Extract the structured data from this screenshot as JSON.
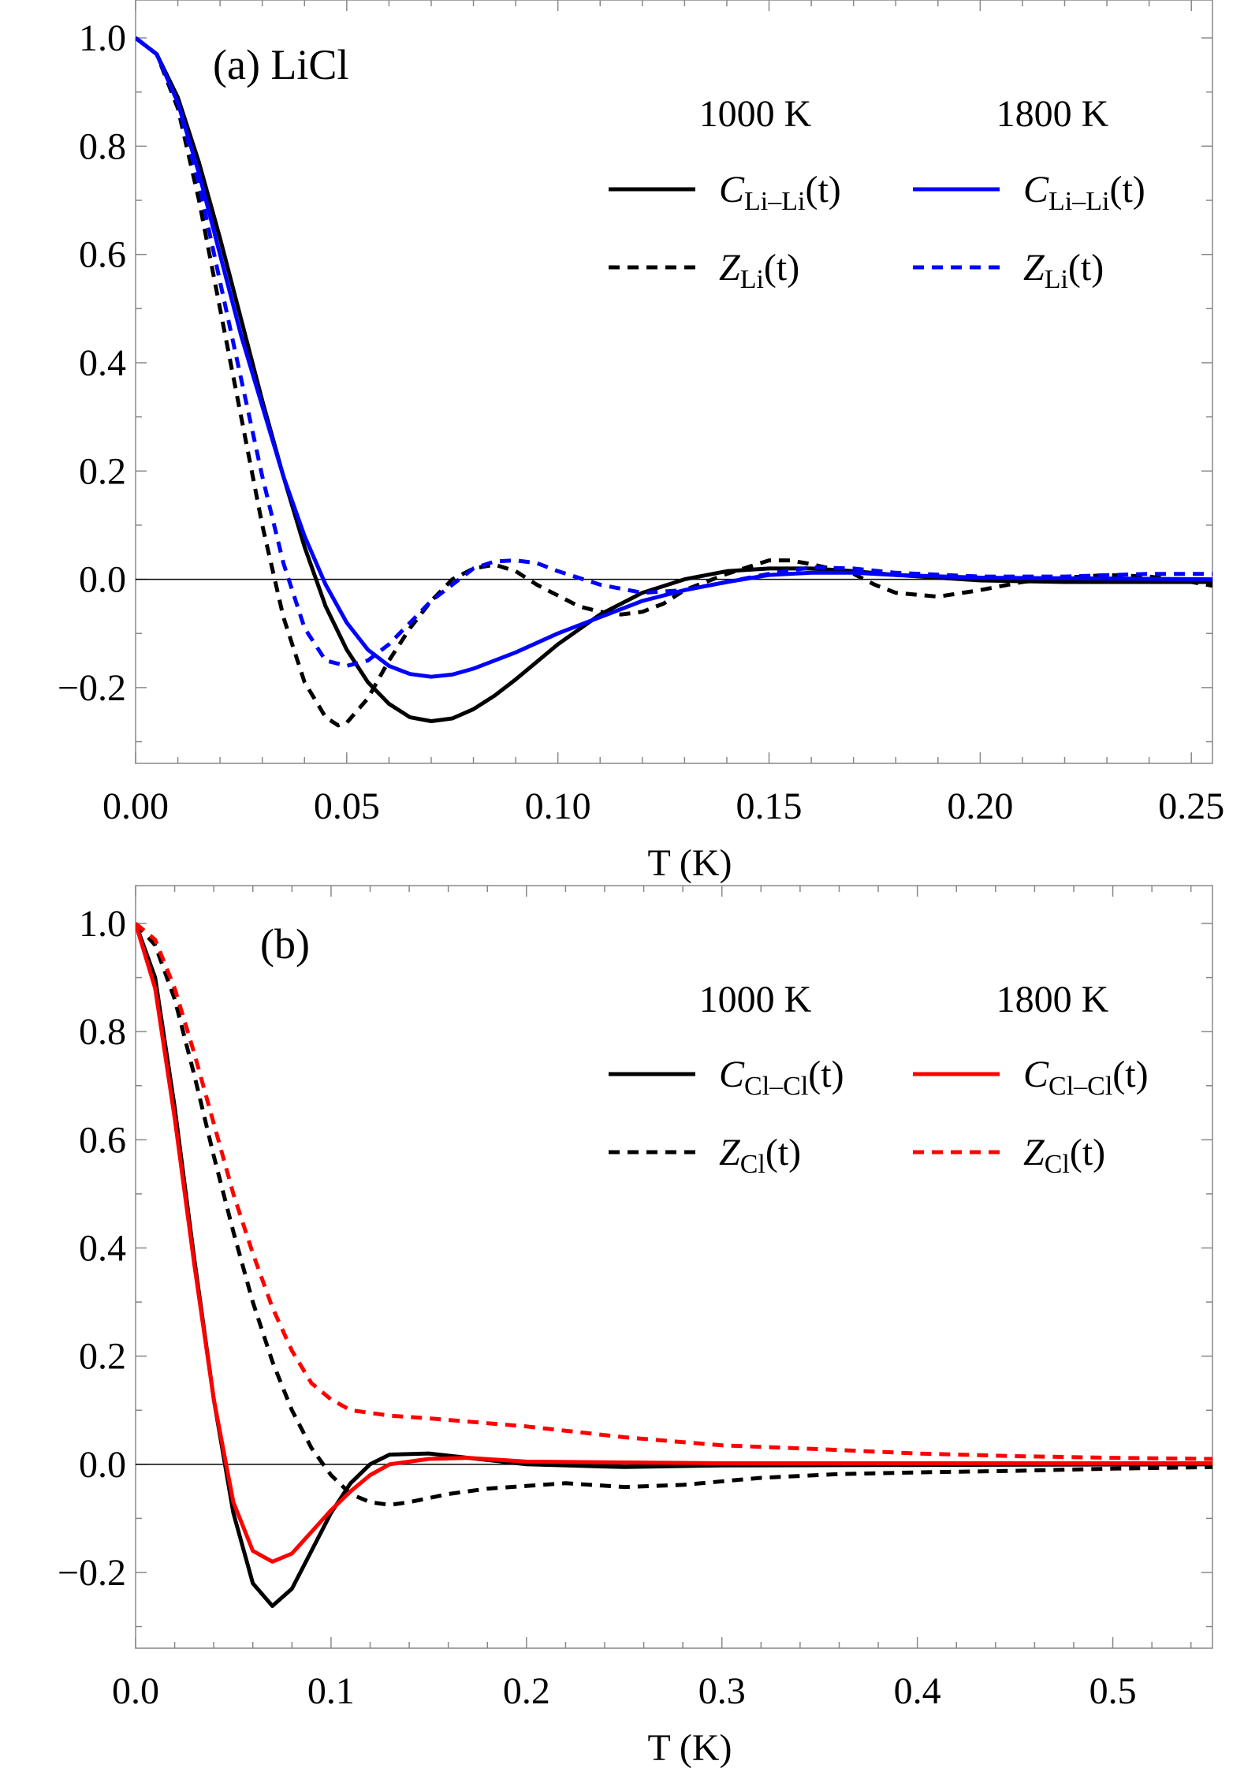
{
  "colors": {
    "black": "#000000",
    "blue": "#0000ff",
    "red": "#ff0000"
  },
  "chart_data": [
    {
      "type": "line",
      "panel_label": "(a) LiCl",
      "xlabel": "T (K)",
      "ylabel": "",
      "xlim": [
        0,
        0.255
      ],
      "ylim": [
        -0.34,
        1.07
      ],
      "xticks": [
        "0.00",
        "0.05",
        "0.10",
        "0.15",
        "0.20",
        "0.25"
      ],
      "xtick_values": [
        0,
        0.05,
        0.1,
        0.15,
        0.2,
        0.25
      ],
      "yticks": [
        "−0.2",
        "0.0",
        "0.2",
        "0.4",
        "0.6",
        "0.8",
        "1.0"
      ],
      "ytick_values": [
        -0.2,
        0,
        0.2,
        0.4,
        0.6,
        0.8,
        1.0
      ],
      "legend_headers": [
        "1000 K",
        "1800 K"
      ],
      "legend_placement": "top-right",
      "series": [
        {
          "name": "C Li–Li(t) 1000 K",
          "label": {
            "main": "C",
            "sub": "Li–Li",
            "tail": "(t)"
          },
          "color": "#000000",
          "dash": false,
          "points": [
            [
              0,
              1
            ],
            [
              0.005,
              0.97
            ],
            [
              0.01,
              0.89
            ],
            [
              0.015,
              0.77
            ],
            [
              0.02,
              0.63
            ],
            [
              0.025,
              0.48
            ],
            [
              0.03,
              0.33
            ],
            [
              0.035,
              0.19
            ],
            [
              0.04,
              0.06
            ],
            [
              0.045,
              -0.05
            ],
            [
              0.05,
              -0.13
            ],
            [
              0.055,
              -0.19
            ],
            [
              0.06,
              -0.23
            ],
            [
              0.065,
              -0.255
            ],
            [
              0.07,
              -0.262
            ],
            [
              0.075,
              -0.257
            ],
            [
              0.08,
              -0.24
            ],
            [
              0.085,
              -0.215
            ],
            [
              0.09,
              -0.185
            ],
            [
              0.1,
              -0.12
            ],
            [
              0.11,
              -0.065
            ],
            [
              0.12,
              -0.025
            ],
            [
              0.13,
              0
            ],
            [
              0.14,
              0.015
            ],
            [
              0.15,
              0.02
            ],
            [
              0.16,
              0.02
            ],
            [
              0.17,
              0.015
            ],
            [
              0.18,
              0.008
            ],
            [
              0.2,
              -0.002
            ],
            [
              0.22,
              -0.005
            ],
            [
              0.255,
              -0.005
            ]
          ]
        },
        {
          "name": "Z Li(t) 1000 K",
          "label": {
            "main": "Z",
            "sub": "Li",
            "tail": "(t)"
          },
          "color": "#000000",
          "dash": true,
          "points": [
            [
              0,
              1
            ],
            [
              0.005,
              0.97
            ],
            [
              0.01,
              0.87
            ],
            [
              0.015,
              0.7
            ],
            [
              0.02,
              0.5
            ],
            [
              0.025,
              0.3
            ],
            [
              0.03,
              0.1
            ],
            [
              0.035,
              -0.07
            ],
            [
              0.04,
              -0.19
            ],
            [
              0.045,
              -0.255
            ],
            [
              0.048,
              -0.27
            ],
            [
              0.05,
              -0.265
            ],
            [
              0.055,
              -0.22
            ],
            [
              0.06,
              -0.15
            ],
            [
              0.065,
              -0.09
            ],
            [
              0.07,
              -0.04
            ],
            [
              0.075,
              0
            ],
            [
              0.08,
              0.02
            ],
            [
              0.085,
              0.027
            ],
            [
              0.09,
              0.015
            ],
            [
              0.095,
              -0.01
            ],
            [
              0.1,
              -0.03
            ],
            [
              0.105,
              -0.05
            ],
            [
              0.11,
              -0.06
            ],
            [
              0.115,
              -0.065
            ],
            [
              0.12,
              -0.06
            ],
            [
              0.125,
              -0.045
            ],
            [
              0.13,
              -0.02
            ],
            [
              0.14,
              0.01
            ],
            [
              0.15,
              0.035
            ],
            [
              0.155,
              0.035
            ],
            [
              0.16,
              0.028
            ],
            [
              0.17,
              0.01
            ],
            [
              0.175,
              -0.01
            ],
            [
              0.18,
              -0.025
            ],
            [
              0.19,
              -0.032
            ],
            [
              0.2,
              -0.02
            ],
            [
              0.21,
              -0.005
            ],
            [
              0.22,
              0.003
            ],
            [
              0.23,
              0.008
            ],
            [
              0.24,
              0.005
            ],
            [
              0.25,
              -0.005
            ],
            [
              0.255,
              -0.012
            ]
          ]
        },
        {
          "name": "C Li–Li(t) 1800 K",
          "label": {
            "main": "C",
            "sub": "Li–Li",
            "tail": "(t)"
          },
          "color": "#0000ff",
          "dash": false,
          "points": [
            [
              0,
              1
            ],
            [
              0.005,
              0.97
            ],
            [
              0.01,
              0.88
            ],
            [
              0.015,
              0.75
            ],
            [
              0.02,
              0.6
            ],
            [
              0.025,
              0.45
            ],
            [
              0.03,
              0.32
            ],
            [
              0.035,
              0.19
            ],
            [
              0.04,
              0.08
            ],
            [
              0.045,
              -0.01
            ],
            [
              0.05,
              -0.08
            ],
            [
              0.055,
              -0.13
            ],
            [
              0.06,
              -0.16
            ],
            [
              0.065,
              -0.175
            ],
            [
              0.07,
              -0.18
            ],
            [
              0.075,
              -0.176
            ],
            [
              0.08,
              -0.165
            ],
            [
              0.09,
              -0.135
            ],
            [
              0.1,
              -0.1
            ],
            [
              0.11,
              -0.07
            ],
            [
              0.12,
              -0.04
            ],
            [
              0.13,
              -0.02
            ],
            [
              0.14,
              -0.005
            ],
            [
              0.15,
              0.008
            ],
            [
              0.16,
              0.012
            ],
            [
              0.17,
              0.012
            ],
            [
              0.18,
              0.008
            ],
            [
              0.2,
              0.003
            ],
            [
              0.255,
              0
            ]
          ]
        },
        {
          "name": "Z Li(t) 1800 K",
          "label": {
            "main": "Z",
            "sub": "Li",
            "tail": "(t)"
          },
          "color": "#0000ff",
          "dash": true,
          "points": [
            [
              0,
              1
            ],
            [
              0.005,
              0.97
            ],
            [
              0.01,
              0.88
            ],
            [
              0.015,
              0.73
            ],
            [
              0.02,
              0.55
            ],
            [
              0.025,
              0.37
            ],
            [
              0.03,
              0.19
            ],
            [
              0.035,
              0.03
            ],
            [
              0.04,
              -0.09
            ],
            [
              0.045,
              -0.15
            ],
            [
              0.05,
              -0.16
            ],
            [
              0.055,
              -0.15
            ],
            [
              0.06,
              -0.12
            ],
            [
              0.065,
              -0.08
            ],
            [
              0.07,
              -0.04
            ],
            [
              0.075,
              -0.01
            ],
            [
              0.08,
              0.02
            ],
            [
              0.085,
              0.033
            ],
            [
              0.09,
              0.035
            ],
            [
              0.095,
              0.03
            ],
            [
              0.1,
              0.015
            ],
            [
              0.11,
              -0.01
            ],
            [
              0.12,
              -0.025
            ],
            [
              0.13,
              -0.02
            ],
            [
              0.14,
              -0.005
            ],
            [
              0.15,
              0.01
            ],
            [
              0.16,
              0.022
            ],
            [
              0.17,
              0.02
            ],
            [
              0.18,
              0.012
            ],
            [
              0.2,
              0.005
            ],
            [
              0.22,
              0.005
            ],
            [
              0.24,
              0.01
            ],
            [
              0.255,
              0.01
            ]
          ]
        }
      ]
    },
    {
      "type": "line",
      "panel_label": "(b)",
      "xlabel": "T (K)",
      "ylabel": "",
      "xlim": [
        0,
        0.551
      ],
      "ylim": [
        -0.34,
        1.07
      ],
      "xticks": [
        "0.0",
        "0.1",
        "0.2",
        "0.3",
        "0.4",
        "0.5"
      ],
      "xtick_values": [
        0,
        0.1,
        0.2,
        0.3,
        0.4,
        0.5
      ],
      "yticks": [
        "−0.2",
        "0.0",
        "0.2",
        "0.4",
        "0.6",
        "0.8",
        "1.0"
      ],
      "ytick_values": [
        -0.2,
        0,
        0.2,
        0.4,
        0.6,
        0.8,
        1.0
      ],
      "legend_headers": [
        "1000 K",
        "1800 K"
      ],
      "legend_placement": "top-right",
      "series": [
        {
          "name": "C Cl–Cl(t) 1000 K",
          "label": {
            "main": "C",
            "sub": "Cl–Cl",
            "tail": "(t)"
          },
          "color": "#000000",
          "dash": false,
          "points": [
            [
              0,
              1
            ],
            [
              0.01,
              0.9
            ],
            [
              0.02,
              0.66
            ],
            [
              0.03,
              0.38
            ],
            [
              0.04,
              0.12
            ],
            [
              0.05,
              -0.09
            ],
            [
              0.06,
              -0.22
            ],
            [
              0.07,
              -0.262
            ],
            [
              0.08,
              -0.23
            ],
            [
              0.09,
              -0.16
            ],
            [
              0.1,
              -0.09
            ],
            [
              0.11,
              -0.035
            ],
            [
              0.12,
              0
            ],
            [
              0.13,
              0.018
            ],
            [
              0.15,
              0.02
            ],
            [
              0.17,
              0.012
            ],
            [
              0.2,
              0
            ],
            [
              0.25,
              -0.005
            ],
            [
              0.3,
              -0.002
            ],
            [
              0.551,
              0
            ]
          ]
        },
        {
          "name": "Z Cl(t) 1000 K",
          "label": {
            "main": "Z",
            "sub": "Cl",
            "tail": "(t)"
          },
          "color": "#000000",
          "dash": true,
          "points": [
            [
              0,
              1
            ],
            [
              0.01,
              0.96
            ],
            [
              0.02,
              0.86
            ],
            [
              0.03,
              0.72
            ],
            [
              0.04,
              0.57
            ],
            [
              0.05,
              0.43
            ],
            [
              0.06,
              0.3
            ],
            [
              0.07,
              0.19
            ],
            [
              0.08,
              0.1
            ],
            [
              0.09,
              0.03
            ],
            [
              0.1,
              -0.02
            ],
            [
              0.11,
              -0.055
            ],
            [
              0.12,
              -0.07
            ],
            [
              0.13,
              -0.075
            ],
            [
              0.14,
              -0.07
            ],
            [
              0.16,
              -0.055
            ],
            [
              0.18,
              -0.045
            ],
            [
              0.2,
              -0.04
            ],
            [
              0.22,
              -0.035
            ],
            [
              0.25,
              -0.042
            ],
            [
              0.28,
              -0.038
            ],
            [
              0.32,
              -0.025
            ],
            [
              0.36,
              -0.018
            ],
            [
              0.4,
              -0.015
            ],
            [
              0.45,
              -0.012
            ],
            [
              0.5,
              -0.008
            ],
            [
              0.551,
              -0.005
            ]
          ]
        },
        {
          "name": "C Cl–Cl(t) 1800 K",
          "label": {
            "main": "C",
            "sub": "Cl–Cl",
            "tail": "(t)"
          },
          "color": "#ff0000",
          "dash": false,
          "points": [
            [
              0,
              1
            ],
            [
              0.01,
              0.88
            ],
            [
              0.02,
              0.64
            ],
            [
              0.03,
              0.37
            ],
            [
              0.04,
              0.12
            ],
            [
              0.05,
              -0.07
            ],
            [
              0.06,
              -0.16
            ],
            [
              0.07,
              -0.18
            ],
            [
              0.08,
              -0.165
            ],
            [
              0.09,
              -0.125
            ],
            [
              0.1,
              -0.085
            ],
            [
              0.11,
              -0.05
            ],
            [
              0.12,
              -0.02
            ],
            [
              0.13,
              0
            ],
            [
              0.15,
              0.01
            ],
            [
              0.17,
              0.012
            ],
            [
              0.2,
              0.005
            ],
            [
              0.3,
              0.002
            ],
            [
              0.551,
              0.002
            ]
          ]
        },
        {
          "name": "Z Cl(t) 1800 K",
          "label": {
            "main": "Z",
            "sub": "Cl",
            "tail": "(t)"
          },
          "color": "#ff0000",
          "dash": true,
          "points": [
            [
              0,
              1
            ],
            [
              0.01,
              0.97
            ],
            [
              0.02,
              0.88
            ],
            [
              0.03,
              0.76
            ],
            [
              0.04,
              0.63
            ],
            [
              0.05,
              0.5
            ],
            [
              0.06,
              0.39
            ],
            [
              0.07,
              0.29
            ],
            [
              0.08,
              0.21
            ],
            [
              0.09,
              0.15
            ],
            [
              0.1,
              0.12
            ],
            [
              0.11,
              0.1
            ],
            [
              0.13,
              0.09
            ],
            [
              0.15,
              0.085
            ],
            [
              0.2,
              0.07
            ],
            [
              0.25,
              0.05
            ],
            [
              0.3,
              0.035
            ],
            [
              0.35,
              0.028
            ],
            [
              0.4,
              0.02
            ],
            [
              0.45,
              0.015
            ],
            [
              0.5,
              0.012
            ],
            [
              0.551,
              0.01
            ]
          ]
        }
      ]
    }
  ]
}
